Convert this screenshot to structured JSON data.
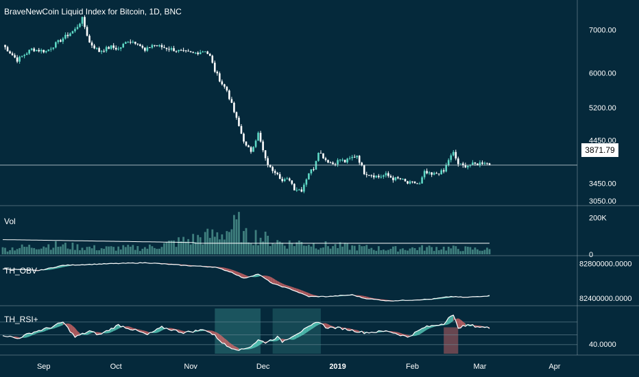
{
  "header": {
    "title": "BraveNewCoin Liquid Index for Bitcoin, 1D, BNC"
  },
  "price_tag": "3871.79",
  "panes": {
    "volume_label": "Vol",
    "obv_label": "TH_OBV",
    "rsi_label": "TH_RSI+"
  },
  "colors": {
    "background": "#05293b",
    "up": "#5ed9c6",
    "down": "#e06a6a",
    "volume_bar": "#3f7f7e",
    "line": "#ffffff",
    "divider": "#8fa3ad"
  },
  "chart_data": [
    {
      "type": "candlestick",
      "title": "BraveNewCoin Liquid Index for Bitcoin, 1D, BNC",
      "y_ticks": [
        "7000.00",
        "6000.00",
        "5200.00",
        "4450.00",
        "3450.00",
        "3050.00"
      ],
      "ylim": [
        3000,
        7400
      ],
      "x_ticks": [
        "Sep",
        "Oct",
        "Nov",
        "Dec",
        "2019",
        "Feb",
        "Mar",
        "Apr"
      ],
      "last_price": 3871.79,
      "close_path": [
        [
          0,
          6650
        ],
        [
          6,
          6300
        ],
        [
          12,
          6550
        ],
        [
          18,
          6500
        ],
        [
          25,
          6800
        ],
        [
          30,
          7000
        ],
        [
          33,
          7250
        ],
        [
          36,
          6700
        ],
        [
          40,
          6500
        ],
        [
          45,
          6600
        ],
        [
          48,
          6550
        ],
        [
          52,
          6750
        ],
        [
          56,
          6700
        ],
        [
          59,
          6500
        ],
        [
          62,
          6650
        ],
        [
          66,
          6600
        ],
        [
          70,
          6550
        ],
        [
          75,
          6480
        ],
        [
          79,
          6450
        ],
        [
          84,
          6520
        ],
        [
          86,
          6380
        ],
        [
          88,
          6050
        ],
        [
          91,
          5750
        ],
        [
          93,
          5600
        ],
        [
          96,
          5100
        ],
        [
          99,
          4600
        ],
        [
          101,
          4300
        ],
        [
          103,
          4200
        ],
        [
          106,
          4600
        ],
        [
          109,
          4000
        ],
        [
          111,
          3800
        ],
        [
          114,
          3700
        ],
        [
          116,
          3500
        ],
        [
          119,
          3550
        ],
        [
          121,
          3330
        ],
        [
          124,
          3300
        ],
        [
          127,
          3700
        ],
        [
          129,
          3800
        ],
        [
          131,
          4200
        ],
        [
          134,
          4000
        ],
        [
          137,
          3900
        ],
        [
          140,
          4000
        ],
        [
          142,
          3950
        ],
        [
          145,
          4050
        ],
        [
          147,
          4100
        ],
        [
          150,
          3700
        ],
        [
          153,
          3650
        ],
        [
          156,
          3600
        ],
        [
          159,
          3650
        ],
        [
          162,
          3560
        ],
        [
          165,
          3550
        ],
        [
          168,
          3450
        ],
        [
          171,
          3460
        ],
        [
          173,
          3430
        ],
        [
          175,
          3700
        ],
        [
          178,
          3640
        ],
        [
          181,
          3700
        ],
        [
          183,
          3720
        ],
        [
          185,
          4000
        ],
        [
          187,
          4150
        ],
        [
          189,
          3900
        ],
        [
          191,
          3850
        ],
        [
          194,
          3880
        ],
        [
          197,
          3900
        ],
        [
          200,
          3950
        ],
        [
          202,
          3871.79
        ]
      ]
    },
    {
      "type": "bar",
      "title": "Vol",
      "y_ticks": [
        "200K",
        "0"
      ],
      "ylim": [
        0,
        250000
      ],
      "moving_average": 60000,
      "peak_values": [
        [
          0,
          40000
        ],
        [
          20,
          70000
        ],
        [
          40,
          45000
        ],
        [
          60,
          50000
        ],
        [
          90,
          150000
        ],
        [
          98,
          220000
        ],
        [
          100,
          130000
        ],
        [
          105,
          140000
        ],
        [
          110,
          110000
        ],
        [
          118,
          80000
        ],
        [
          125,
          90000
        ],
        [
          130,
          70000
        ],
        [
          140,
          60000
        ],
        [
          150,
          50000
        ],
        [
          160,
          40000
        ],
        [
          170,
          45000
        ],
        [
          180,
          50000
        ],
        [
          186,
          45000
        ],
        [
          195,
          40000
        ],
        [
          202,
          35000
        ]
      ]
    },
    {
      "type": "area",
      "title": "TH_OBV",
      "y_ticks": [
        "82800000.0000",
        "82400000.0000"
      ],
      "ylim": [
        82330000,
        82860000
      ],
      "series": [
        [
          0,
          82740000
        ],
        [
          15,
          82720000
        ],
        [
          25,
          82780000
        ],
        [
          45,
          82800000
        ],
        [
          60,
          82810000
        ],
        [
          75,
          82780000
        ],
        [
          88,
          82760000
        ],
        [
          95,
          82700000
        ],
        [
          100,
          82630000
        ],
        [
          106,
          82680000
        ],
        [
          112,
          82570000
        ],
        [
          120,
          82500000
        ],
        [
          127,
          82420000
        ],
        [
          135,
          82420000
        ],
        [
          145,
          82440000
        ],
        [
          150,
          82400000
        ],
        [
          160,
          82370000
        ],
        [
          170,
          82380000
        ],
        [
          178,
          82390000
        ],
        [
          186,
          82420000
        ],
        [
          192,
          82410000
        ],
        [
          202,
          82430000
        ]
      ]
    },
    {
      "type": "area",
      "title": "TH_RSI+",
      "y_ticks": [
        "40.0000"
      ],
      "ylim": [
        20,
        80
      ],
      "series": [
        [
          0,
          45
        ],
        [
          6,
          40
        ],
        [
          12,
          48
        ],
        [
          20,
          55
        ],
        [
          25,
          62
        ],
        [
          30,
          42
        ],
        [
          36,
          50
        ],
        [
          40,
          45
        ],
        [
          48,
          58
        ],
        [
          56,
          50
        ],
        [
          60,
          45
        ],
        [
          66,
          55
        ],
        [
          70,
          52
        ],
        [
          75,
          48
        ],
        [
          84,
          52
        ],
        [
          88,
          44
        ],
        [
          91,
          35
        ],
        [
          93,
          30
        ],
        [
          96,
          27
        ],
        [
          99,
          25
        ],
        [
          103,
          30
        ],
        [
          106,
          38
        ],
        [
          109,
          35
        ],
        [
          114,
          42
        ],
        [
          116,
          36
        ],
        [
          121,
          45
        ],
        [
          127,
          55
        ],
        [
          131,
          63
        ],
        [
          134,
          55
        ],
        [
          140,
          54
        ],
        [
          150,
          48
        ],
        [
          160,
          50
        ],
        [
          168,
          42
        ],
        [
          175,
          55
        ],
        [
          183,
          60
        ],
        [
          185,
          68
        ],
        [
          187,
          70
        ],
        [
          189,
          55
        ],
        [
          194,
          58
        ],
        [
          197,
          56
        ],
        [
          202,
          54
        ]
      ]
    }
  ]
}
